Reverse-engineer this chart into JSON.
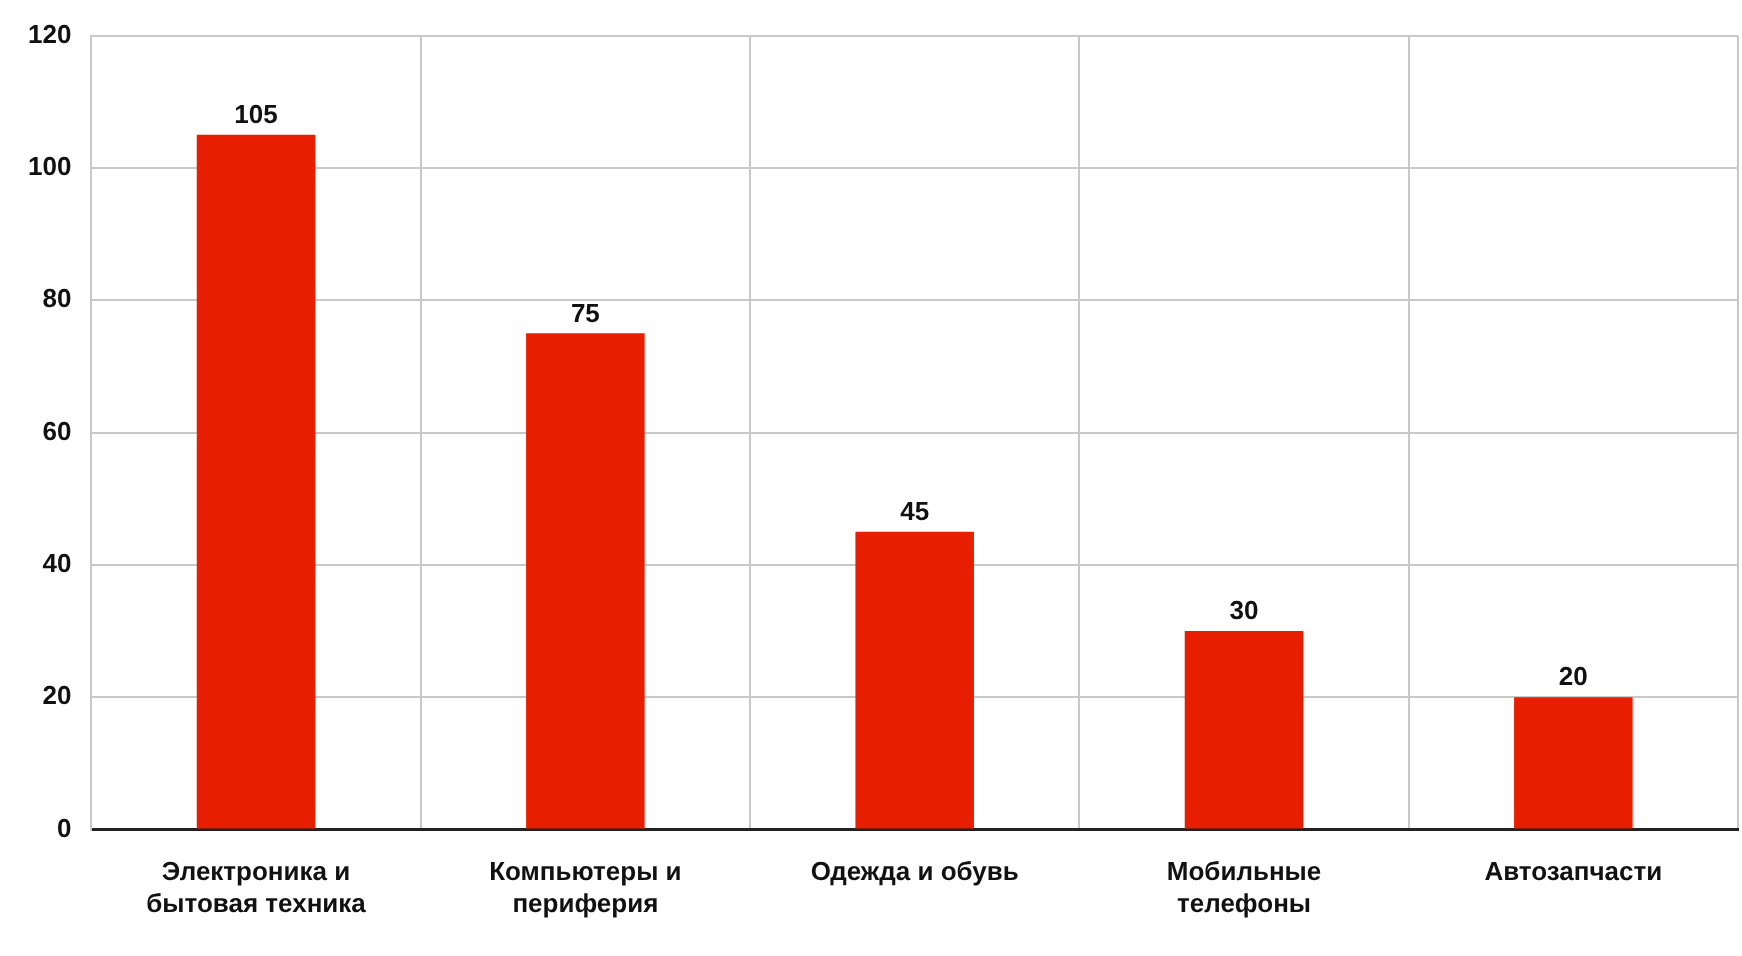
{
  "chart_data": {
    "type": "bar",
    "categories": [
      "Электроника и бытовая техника",
      "Компьютеры и периферия",
      "Одежда и обувь",
      "Мобильные телефоны",
      "Автозапчасти"
    ],
    "values": [
      105,
      75,
      45,
      30,
      20
    ],
    "color": "#e81e00",
    "ylim": [
      0,
      120
    ],
    "yticks": [
      0,
      20,
      40,
      60,
      80,
      100,
      120
    ],
    "grid": true,
    "data_labels": true
  }
}
